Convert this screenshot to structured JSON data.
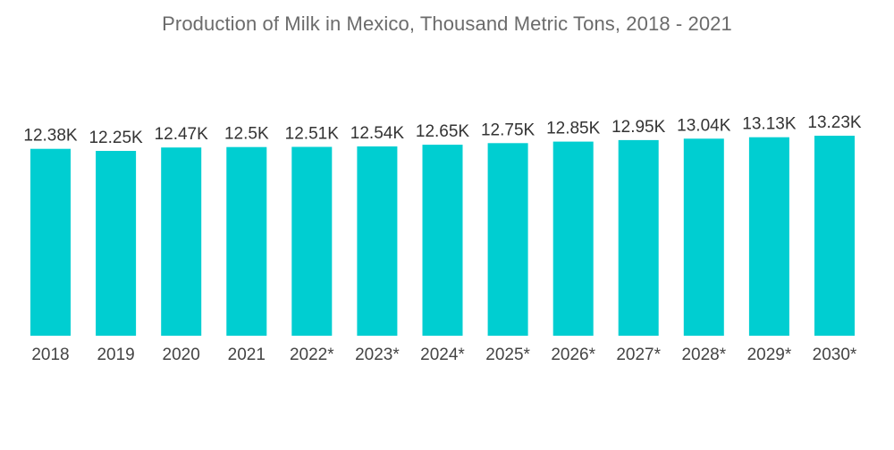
{
  "chart_data": {
    "type": "bar",
    "title": "Production of Milk in Mexico, Thousand Metric Tons, 2018 - 2021",
    "xlabel": "",
    "ylabel": "",
    "categories": [
      "2018",
      "2019",
      "2020",
      "2021",
      "2022*",
      "2023*",
      "2024*",
      "2025*",
      "2026*",
      "2027*",
      "2028*",
      "2029*",
      "2030*"
    ],
    "values": [
      12.38,
      12.25,
      12.47,
      12.5,
      12.51,
      12.54,
      12.65,
      12.75,
      12.85,
      12.95,
      13.04,
      13.13,
      13.23
    ],
    "data_labels": [
      "12.38K",
      "12.25K",
      "12.47K",
      "12.5K",
      "12.51K",
      "12.54K",
      "12.65K",
      "12.75K",
      "12.85K",
      "12.95K",
      "13.04K",
      "13.13K",
      "13.23K"
    ],
    "grid": false,
    "legend": "none",
    "bar_color": "#00CED1"
  }
}
